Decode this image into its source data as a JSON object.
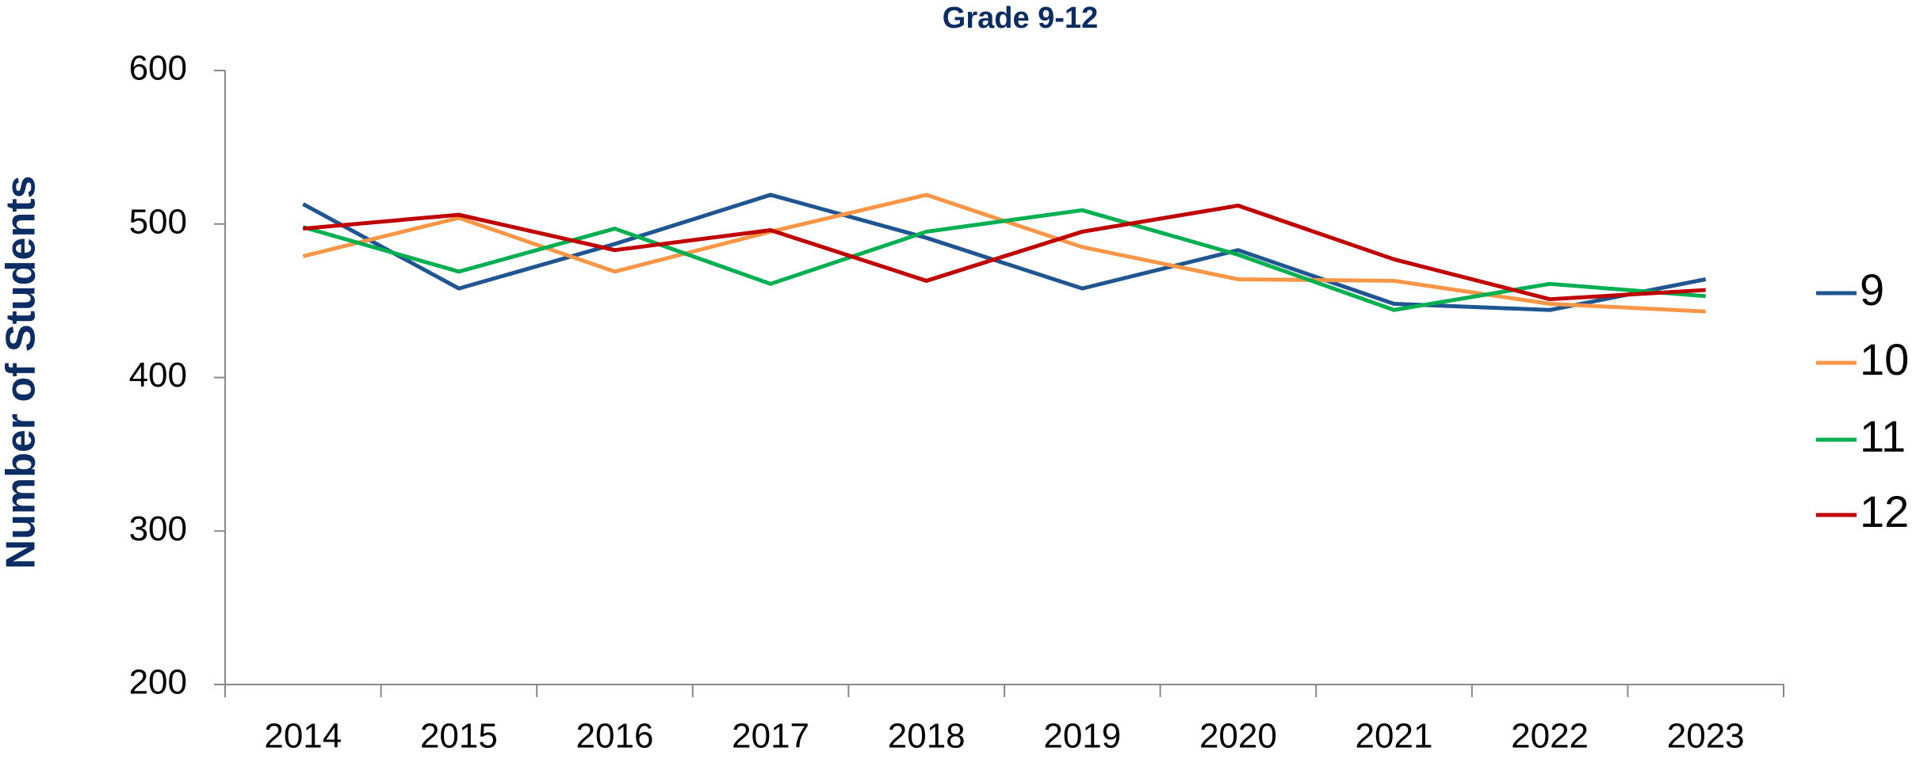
{
  "chart_data": {
    "type": "line",
    "title": "Grade 9-12",
    "y_label": "Number of Students",
    "categories": [
      "2014",
      "2015",
      "2016",
      "2017",
      "2018",
      "2019",
      "2020",
      "2021",
      "2022",
      "2023"
    ],
    "series": [
      {
        "name": "9",
        "color": "#1f5591",
        "values": [
          513,
          458,
          487,
          519,
          491,
          458,
          483,
          448,
          444,
          464
        ]
      },
      {
        "name": "10",
        "color": "#f79646",
        "values": [
          479,
          504,
          469,
          495,
          519,
          485,
          464,
          463,
          448,
          443
        ]
      },
      {
        "name": "11",
        "color": "#00b050",
        "values": [
          498,
          469,
          497,
          461,
          495,
          509,
          480,
          444,
          461,
          453
        ]
      },
      {
        "name": "12",
        "color": "#c00000",
        "values": [
          497,
          506,
          483,
          496,
          463,
          495,
          512,
          477,
          451,
          457
        ]
      }
    ],
    "ylim": [
      200,
      600
    ],
    "yticks": [
      200,
      300,
      400,
      500,
      600
    ],
    "legend": "right"
  }
}
